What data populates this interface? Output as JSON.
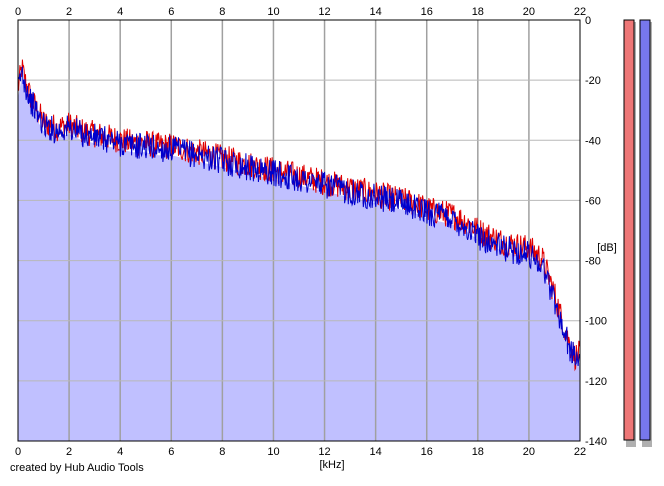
{
  "app": {
    "credit": "created by Hub Audio Tools"
  },
  "chart_data": {
    "type": "area",
    "title": "",
    "xlabel": "[kHz]",
    "ylabel": "[dB]",
    "xlim": [
      0,
      22
    ],
    "ylim": [
      -140,
      0
    ],
    "x_ticks": [
      "0",
      "2",
      "4",
      "6",
      "8",
      "10",
      "12",
      "14",
      "16",
      "18",
      "20",
      "22"
    ],
    "y_ticks": [
      "0",
      "-20",
      "-40",
      "-60",
      "-80",
      "-100",
      "-120",
      "-140"
    ],
    "grid": true,
    "top_axis_ticks": true,
    "series": [
      {
        "color": "#e00000",
        "x": [
          0,
          0.15,
          0.3,
          0.5,
          0.8,
          1.0,
          1.5,
          2.0,
          2.5,
          3.0,
          3.5,
          4.0,
          4.5,
          5.0,
          5.5,
          6.0,
          6.5,
          7.0,
          7.5,
          8.0,
          8.5,
          9.0,
          9.5,
          10.0,
          10.5,
          11.0,
          11.5,
          12.0,
          12.5,
          13.0,
          13.5,
          14.0,
          14.5,
          15.0,
          15.5,
          16.0,
          16.5,
          17.0,
          17.5,
          18.0,
          18.5,
          19.0,
          19.5,
          20.0,
          20.5,
          21.0,
          21.3,
          21.6,
          21.8,
          22.0
        ],
        "y": [
          -22,
          -15,
          -20,
          -25,
          -30,
          -33,
          -35,
          -34,
          -36,
          -37,
          -38,
          -39,
          -40,
          -40,
          -41,
          -41,
          -42,
          -43,
          -44,
          -45,
          -46,
          -47,
          -48,
          -49,
          -50,
          -51,
          -52,
          -53,
          -54,
          -55,
          -56,
          -57,
          -58,
          -59,
          -60,
          -62,
          -63,
          -64,
          -66,
          -69,
          -71,
          -73,
          -74,
          -75,
          -78,
          -90,
          -99,
          -107,
          -111,
          -110
        ]
      },
      {
        "color": "#0000cc",
        "x": [
          0,
          0.15,
          0.3,
          0.5,
          0.8,
          1.0,
          1.5,
          2.0,
          2.5,
          3.0,
          3.5,
          4.0,
          4.5,
          5.0,
          5.5,
          6.0,
          6.5,
          7.0,
          7.5,
          8.0,
          8.5,
          9.0,
          9.5,
          10.0,
          10.5,
          11.0,
          11.5,
          12.0,
          12.5,
          13.0,
          13.5,
          14.0,
          14.5,
          15.0,
          15.5,
          16.0,
          16.5,
          17.0,
          17.5,
          18.0,
          18.5,
          19.0,
          19.5,
          20.0,
          20.5,
          21.0,
          21.3,
          21.6,
          21.8,
          22.0
        ],
        "y": [
          -22,
          -16,
          -21,
          -26,
          -31,
          -34,
          -36,
          -35,
          -37,
          -38,
          -39,
          -40,
          -41,
          -41,
          -42,
          -42,
          -43,
          -44,
          -45,
          -46,
          -47,
          -48,
          -49,
          -50,
          -51,
          -52,
          -53,
          -54,
          -55,
          -56,
          -57,
          -58,
          -59,
          -60,
          -61,
          -63,
          -64,
          -65,
          -68,
          -71,
          -73,
          -75,
          -76,
          -77,
          -80,
          -92,
          -101,
          -108,
          -112,
          -111
        ]
      }
    ]
  },
  "meters": [
    {
      "name": "left-channel-meter",
      "color": "#ee7777"
    },
    {
      "name": "right-channel-meter",
      "color": "#7777ee"
    }
  ]
}
